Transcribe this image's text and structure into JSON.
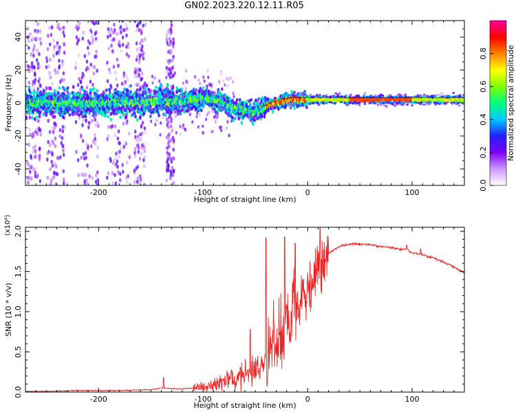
{
  "title": "GN02.2023.220.12.11.R05",
  "chart_data": [
    {
      "type": "heatmap",
      "name": "spectrogram",
      "xlabel": "Height of straight line (km)",
      "ylabel": "Frequency (Hz)",
      "xlim": [
        -270,
        150
      ],
      "ylim": [
        -50,
        50
      ],
      "x_ticks": [
        -200,
        -100,
        0,
        100
      ],
      "y_ticks": [
        -40,
        -20,
        0,
        20,
        40
      ],
      "colorbar": {
        "label": "Normalized spectral amplitude",
        "range": [
          0,
          1
        ],
        "ticks": [
          "0.0",
          "0.2",
          "0.4",
          "0.6",
          "0.8"
        ],
        "colors": [
          "#ffffff",
          "#cc99ff",
          "#8000ff",
          "#2020ff",
          "#00c8ff",
          "#00ff80",
          "#80ff00",
          "#ffff00",
          "#ff8000",
          "#ff0000",
          "#ff00a0"
        ]
      },
      "ridge": {
        "x": [
          -270,
          -230,
          -180,
          -130,
          -110,
          -95,
          -80,
          -65,
          -50,
          -42,
          -35,
          -25,
          -15,
          -5,
          0,
          20,
          60,
          100,
          150
        ],
        "y": [
          0,
          0,
          0,
          1,
          2,
          3,
          0,
          -4,
          -6,
          -3,
          -1,
          1,
          2,
          2,
          2,
          2,
          2,
          2,
          2
        ]
      }
    },
    {
      "type": "line",
      "name": "snr",
      "xlabel": "Height of straight line (km)",
      "ylabel": "SNR (10 * v/v)",
      "y_scale_label": "(x10⁴)",
      "xlim": [
        -270,
        150
      ],
      "ylim": [
        0,
        2.05
      ],
      "x_ticks": [
        -200,
        -100,
        0,
        100
      ],
      "y_ticks": [
        "0.0",
        "0.5",
        "1.0",
        "1.5",
        "2.0"
      ],
      "color": "#ee2222",
      "series": [
        {
          "x": [
            -270,
            -250,
            -220,
            -180,
            -150,
            -140,
            -120,
            -100,
            -90,
            -80,
            -70,
            -60,
            -50,
            -45,
            -40,
            -35,
            -30,
            -25,
            -20,
            -15,
            -10,
            -5,
            0,
            5,
            10,
            15,
            20,
            25,
            30,
            40,
            50,
            60,
            70,
            80,
            90,
            95,
            100,
            105,
            110,
            115,
            120,
            130,
            140,
            150
          ],
          "y": [
            0.01,
            0.01,
            0.02,
            0.02,
            0.03,
            0.05,
            0.04,
            0.06,
            0.08,
            0.12,
            0.17,
            0.25,
            0.3,
            0.32,
            0.38,
            0.5,
            0.63,
            0.73,
            0.84,
            0.95,
            1.05,
            1.16,
            1.3,
            1.45,
            1.55,
            1.65,
            1.72,
            1.77,
            1.81,
            1.84,
            1.84,
            1.83,
            1.81,
            1.8,
            1.77,
            1.78,
            1.73,
            1.72,
            1.71,
            1.69,
            1.67,
            1.62,
            1.56,
            1.48
          ]
        }
      ],
      "spikes": [
        {
          "x": 12,
          "y": 2.05
        },
        {
          "x": -22,
          "y": 1.93
        },
        {
          "x": -40,
          "y": 1.92
        },
        {
          "x": -12,
          "y": 1.85
        },
        {
          "x": -55,
          "y": 0.78
        },
        {
          "x": -138,
          "y": 0.18
        },
        {
          "x": 95,
          "y": 1.83
        },
        {
          "x": 108,
          "y": 1.78
        }
      ]
    }
  ]
}
